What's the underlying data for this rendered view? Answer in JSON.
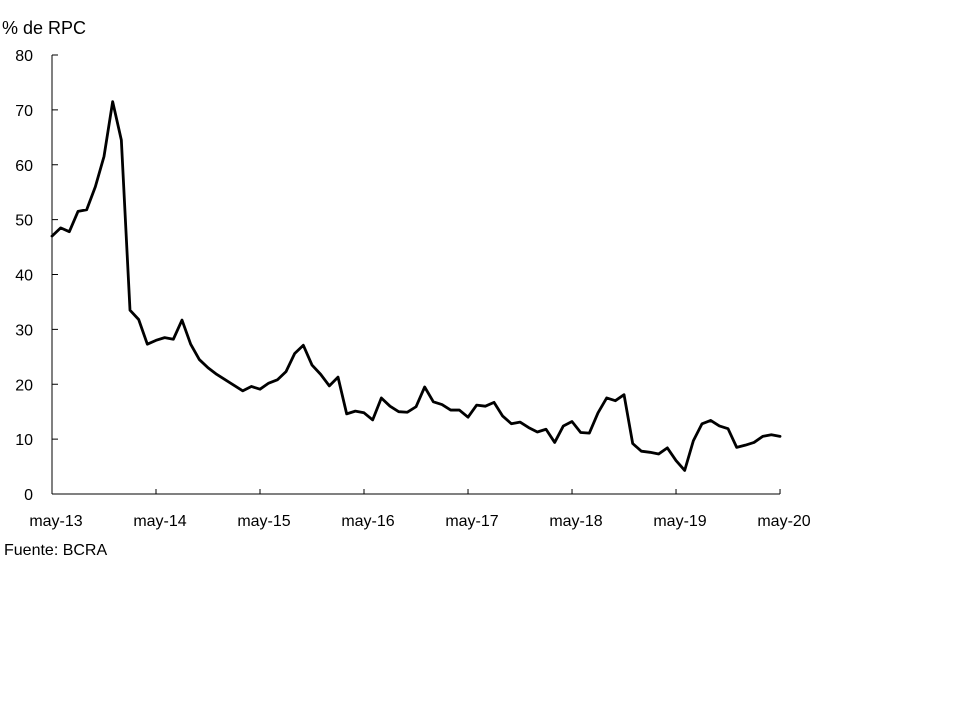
{
  "chart_data": {
    "type": "line",
    "title": "",
    "ylabel": "% de RPC",
    "xlabel": "",
    "ylim": [
      0,
      80
    ],
    "yticks": [
      0,
      10,
      20,
      30,
      40,
      50,
      60,
      70,
      80
    ],
    "xticks": [
      "may-13",
      "may-14",
      "may-15",
      "may-16",
      "may-17",
      "may-18",
      "may-19",
      "may-20"
    ],
    "grid": false,
    "legend": "none",
    "series": [
      {
        "color": "#000000",
        "x": [
          "may-13",
          "jun-13",
          "jul-13",
          "ago-13",
          "sep-13",
          "oct-13",
          "nov-13",
          "dic-13",
          "ene-14",
          "feb-14",
          "mar-14",
          "abr-14",
          "may-14",
          "jun-14",
          "jul-14",
          "ago-14",
          "sep-14",
          "oct-14",
          "nov-14",
          "dic-14",
          "ene-15",
          "feb-15",
          "mar-15",
          "abr-15",
          "may-15",
          "jun-15",
          "jul-15",
          "ago-15",
          "sep-15",
          "oct-15",
          "nov-15",
          "dic-15",
          "ene-16",
          "feb-16",
          "mar-16",
          "abr-16",
          "may-16",
          "jun-16",
          "jul-16",
          "ago-16",
          "sep-16",
          "oct-16",
          "nov-16",
          "dic-16",
          "ene-17",
          "feb-17",
          "mar-17",
          "abr-17",
          "may-17",
          "jun-17",
          "jul-17",
          "ago-17",
          "sep-17",
          "oct-17",
          "nov-17",
          "dic-17",
          "ene-18",
          "feb-18",
          "mar-18",
          "abr-18",
          "may-18",
          "jun-18",
          "jul-18",
          "ago-18",
          "sep-18",
          "oct-18",
          "nov-18",
          "dic-18",
          "ene-19",
          "feb-19",
          "mar-19",
          "abr-19",
          "may-19",
          "jun-19",
          "jul-19",
          "ago-19",
          "sep-19",
          "oct-19",
          "nov-19",
          "dic-19",
          "ene-20",
          "feb-20",
          "mar-20",
          "abr-20",
          "may-20"
        ],
        "values": [
          47.0,
          48.5,
          47.8,
          51.5,
          51.8,
          56.0,
          61.5,
          71.5,
          64.5,
          33.5,
          31.8,
          27.3,
          28.0,
          28.5,
          28.2,
          31.7,
          27.3,
          24.5,
          23.0,
          21.8,
          20.8,
          19.8,
          18.8,
          19.6,
          19.1,
          20.2,
          20.8,
          22.3,
          25.6,
          27.1,
          23.5,
          21.8,
          19.7,
          21.3,
          14.6,
          15.1,
          14.8,
          13.5,
          17.5,
          16.0,
          15.0,
          14.9,
          15.9,
          19.5,
          16.8,
          16.3,
          15.3,
          15.3,
          14.0,
          16.2,
          16.0,
          16.7,
          14.2,
          12.8,
          13.1,
          12.1,
          11.3,
          11.8,
          9.4,
          12.4,
          13.2,
          11.2,
          11.1,
          14.8,
          17.5,
          17.0,
          18.1,
          9.2,
          7.8,
          7.6,
          7.3,
          8.4,
          6.1,
          4.3,
          9.7,
          12.8,
          13.4,
          12.4,
          11.9,
          8.5,
          8.9,
          9.4,
          10.5,
          10.8,
          10.5
        ]
      }
    ]
  },
  "footer": {
    "source": "Fuente: BCRA"
  }
}
